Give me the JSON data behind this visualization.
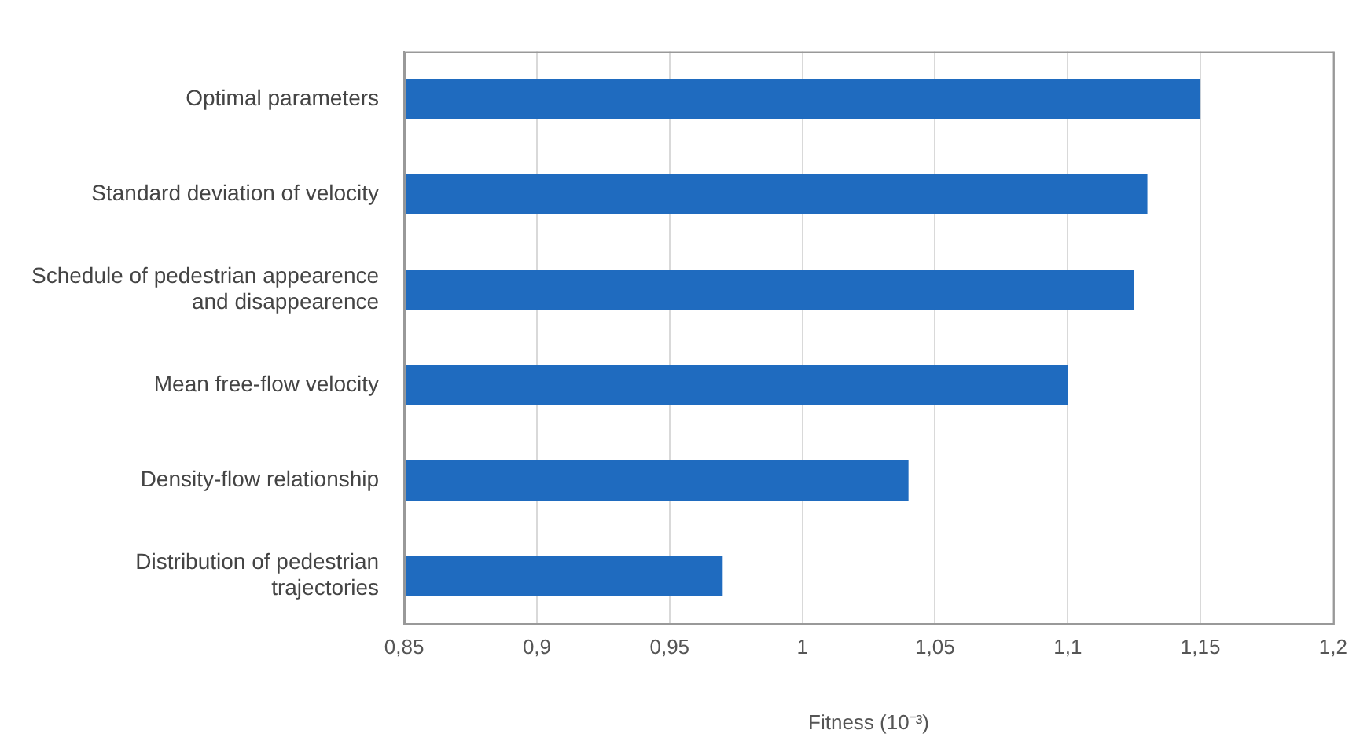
{
  "chart_data": {
    "type": "bar",
    "orientation": "horizontal",
    "xlabel": "Fitness (10⁻³)",
    "categories": [
      "Optimal parameters",
      "Standard deviation of velocity",
      "Schedule of pedestrian appearence and disappearence",
      "Mean free-flow velocity",
      "Density-flow relationship",
      "Distribution of pedestrian trajectories"
    ],
    "values": [
      1.15,
      1.13,
      1.125,
      1.1,
      1.04,
      0.97
    ],
    "color": "#1f6bbf",
    "xlim": [
      0.85,
      1.2
    ],
    "xticks": [
      {
        "value": 0.85,
        "label": "0,85"
      },
      {
        "value": 0.9,
        "label": "0,9"
      },
      {
        "value": 0.95,
        "label": "0,95"
      },
      {
        "value": 1,
        "label": "1"
      },
      {
        "value": 1.05,
        "label": "1,05"
      },
      {
        "value": 1.1,
        "label": "1,1"
      },
      {
        "value": 1.15,
        "label": "1,15"
      },
      {
        "value": 1.2,
        "label": "1,2"
      }
    ],
    "grid": "x",
    "legend": false
  }
}
